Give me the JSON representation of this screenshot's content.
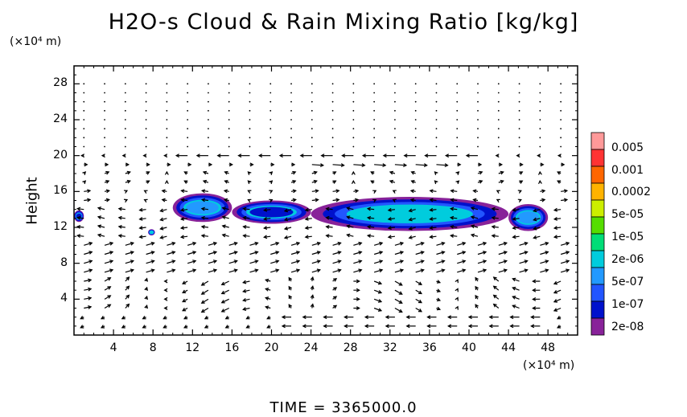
{
  "chart_data": {
    "type": "heatmap",
    "title": "H2O-s Cloud & Rain Mixing Ratio [kg/kg]",
    "xlabel": "",
    "ylabel": "Height",
    "x_unit_label": "(×10⁴ m)",
    "y_unit_label": "(×10⁴ m)",
    "footer": "TIME = 3365000.0",
    "xlim": [
      0,
      51
    ],
    "ylim": [
      0,
      30
    ],
    "x_ticks": [
      "4",
      "8",
      "12",
      "16",
      "20",
      "24",
      "28",
      "32",
      "36",
      "40",
      "44",
      "48"
    ],
    "y_ticks": [
      "4",
      "8",
      "12",
      "16",
      "20",
      "24",
      "28"
    ],
    "colorbar": {
      "labels": [
        "0.005",
        "0.001",
        "0.0002",
        "5e-05",
        "1e-05",
        "2e-06",
        "5e-07",
        "1e-07",
        "2e-08"
      ],
      "colors": [
        "#ff9999",
        "#ff3333",
        "#ff6600",
        "#ffb300",
        "#ccee00",
        "#55dd00",
        "#00dd77",
        "#00ccdd",
        "#2299ff",
        "#2255ff",
        "#0011cc",
        "#882299"
      ]
    },
    "cloud_regions": [
      {
        "x": [
          0,
          1
        ],
        "y": [
          12.6,
          13.9
        ],
        "level": "1e-07"
      },
      {
        "x": [
          10,
          16
        ],
        "y": [
          12.6,
          15.8
        ],
        "level": "2e-06"
      },
      {
        "x": [
          16,
          24
        ],
        "y": [
          12.4,
          15.0
        ],
        "level": "1e-07"
      },
      {
        "x": [
          24,
          44
        ],
        "y": [
          11.6,
          15.4
        ],
        "level": "1e-05"
      },
      {
        "x": [
          44,
          48
        ],
        "y": [
          11.6,
          14.6
        ],
        "level": "2e-06"
      },
      {
        "x": [
          7.5,
          8.2
        ],
        "y": [
          11.1,
          11.8
        ],
        "level": "1e-05"
      }
    ],
    "wind_field": {
      "description_levels": [
        {
          "y": 21,
          "direction": "calm_dots"
        },
        {
          "y": 20,
          "direction": "westward",
          "x_range": [
            10,
            42
          ]
        },
        {
          "y": 19,
          "direction": "eastward",
          "x_range": [
            24,
            38
          ]
        },
        {
          "y": 15,
          "direction": "mixed",
          "x_range": [
            4,
            48
          ]
        },
        {
          "y": 8,
          "direction": "southeast",
          "x_range": [
            0,
            50
          ]
        },
        {
          "y": 1,
          "direction": "westward",
          "x_range": [
            22,
            48
          ]
        }
      ]
    }
  }
}
